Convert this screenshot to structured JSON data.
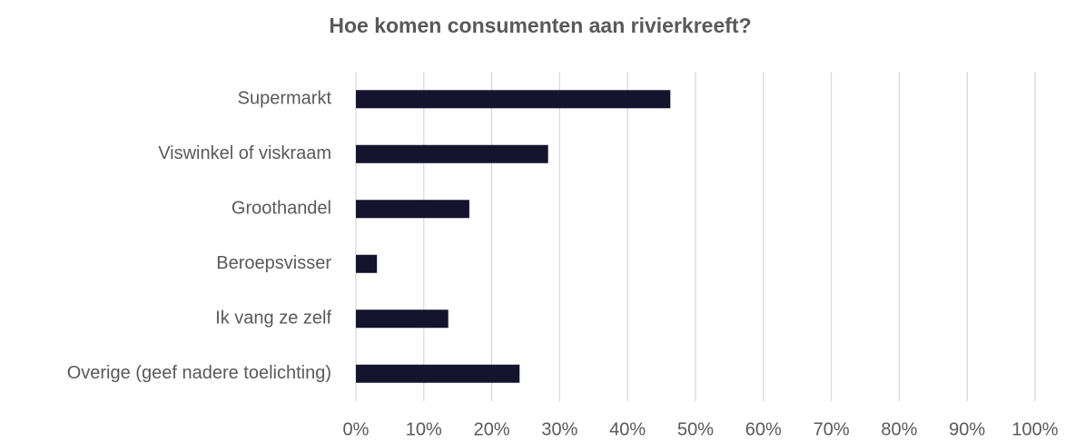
{
  "chart_data": {
    "type": "barh",
    "title": "Hoe komen consumenten aan rivierkreeft?",
    "categories": [
      "Supermarkt",
      "Viswinkel of viskraam",
      "Groothandel",
      "Beroepsvisser",
      "Ik vang ze zelf",
      "Overige (geef nadere toelichting)"
    ],
    "values": [
      46.3,
      28.3,
      16.7,
      3.1,
      13.6,
      24.1
    ],
    "color": "#15142f",
    "xlim": [
      0,
      100
    ],
    "xticks": [
      {
        "value": 0,
        "label": "0%"
      },
      {
        "value": 10,
        "label": "10%"
      },
      {
        "value": 20,
        "label": "20%"
      },
      {
        "value": 30,
        "label": "30%"
      },
      {
        "value": 40,
        "label": "40%"
      },
      {
        "value": 50,
        "label": "50%"
      },
      {
        "value": 60,
        "label": "60%"
      },
      {
        "value": 70,
        "label": "70%"
      },
      {
        "value": 80,
        "label": "80%"
      },
      {
        "value": 90,
        "label": "90%"
      },
      {
        "value": 100,
        "label": "100%"
      }
    ],
    "grid": true
  }
}
